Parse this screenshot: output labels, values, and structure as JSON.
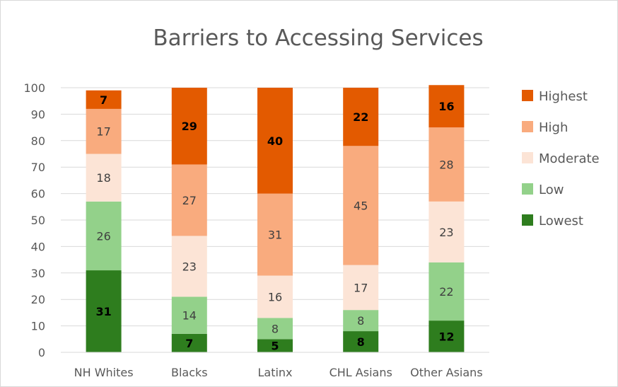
{
  "chart_data": {
    "type": "bar",
    "stacked": true,
    "title": "Barriers to Accessing Services",
    "xlabel": "",
    "ylabel": "",
    "ylim": [
      0,
      100
    ],
    "yticks": [
      0,
      10,
      20,
      30,
      40,
      50,
      60,
      70,
      80,
      90,
      100
    ],
    "grid": true,
    "legend_position": "right",
    "categories": [
      "NH Whites",
      "Blacks",
      "Latinx",
      "CHL Asians",
      "Other Asians"
    ],
    "series": [
      {
        "name": "Lowest",
        "color": "#2e7d1e",
        "label_color": "#000000",
        "label_bold": true,
        "values": [
          31,
          7,
          5,
          8,
          12
        ]
      },
      {
        "name": "Low",
        "color": "#93d18a",
        "label_color": "#404040",
        "label_bold": false,
        "values": [
          26,
          14,
          8,
          8,
          22
        ]
      },
      {
        "name": "Moderate",
        "color": "#fce4d6",
        "label_color": "#404040",
        "label_bold": false,
        "values": [
          18,
          23,
          16,
          17,
          23
        ]
      },
      {
        "name": "High",
        "color": "#f9ab7e",
        "label_color": "#404040",
        "label_bold": false,
        "values": [
          17,
          27,
          31,
          45,
          28
        ]
      },
      {
        "name": "Highest",
        "color": "#e35a00",
        "label_color": "#000000",
        "label_bold": true,
        "values": [
          7,
          29,
          40,
          22,
          16
        ]
      }
    ]
  }
}
